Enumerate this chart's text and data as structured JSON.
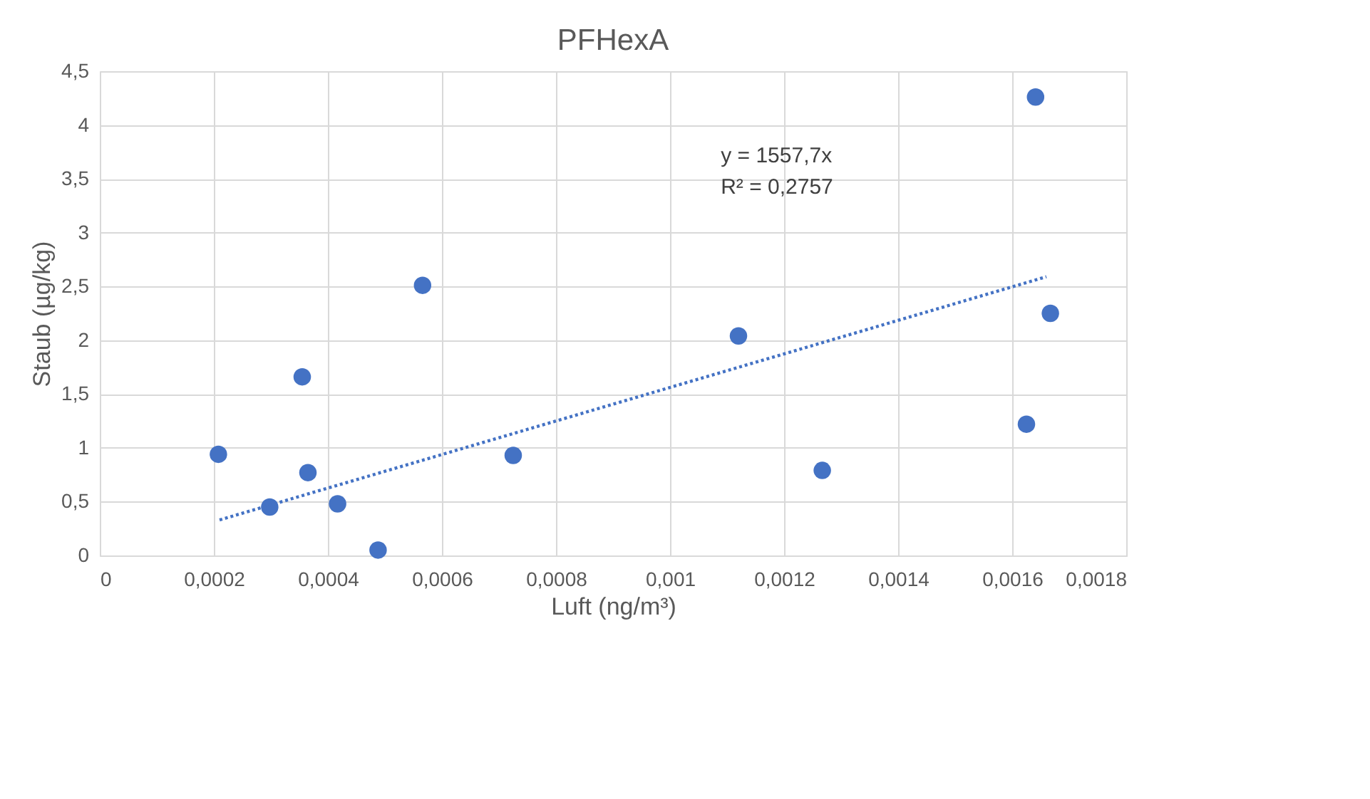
{
  "chart_data": {
    "type": "scatter",
    "title": "PFHexA",
    "xlabel": "Luft (ng/m³)",
    "ylabel": "Staub (µg/kg)",
    "xlim": [
      0,
      0.0018
    ],
    "xticks": [
      0,
      {
        "value": 0.0002,
        "label": "0,0002"
      },
      {
        "value": 0.0004,
        "label": "0,0004"
      },
      {
        "value": 0.0006,
        "label": "0,0006"
      },
      {
        "value": 0.0008,
        "label": "0,0008"
      },
      {
        "value": 0.001,
        "label": "0,001"
      },
      {
        "value": 0.0012,
        "label": "0,0012"
      },
      {
        "value": 0.0014,
        "label": "0,0014"
      },
      {
        "value": 0.0016,
        "label": "0,0016"
      },
      {
        "value": 0.0018,
        "label": "0,0018"
      }
    ],
    "ylim": [
      0,
      4.5
    ],
    "yticks": [
      0,
      {
        "value": 0.5,
        "label": "0,5"
      },
      1,
      {
        "value": 1.5,
        "label": "1,5"
      },
      2,
      {
        "value": 2.5,
        "label": "2,5"
      },
      3,
      {
        "value": 3.5,
        "label": "3,5"
      },
      4,
      {
        "value": 4.5,
        "label": "4,5"
      }
    ],
    "grid": true,
    "series": [
      {
        "marker": "circle",
        "color": "#4472c4",
        "x": [
          0.000208,
          0.000298,
          0.000355,
          0.000365,
          0.000417,
          0.000488,
          0.000566,
          0.000725,
          0.00112,
          0.001267,
          0.001625,
          0.001641,
          0.001667
        ],
        "values": [
          0.94,
          0.45,
          1.66,
          0.77,
          0.48,
          0.05,
          2.51,
          0.93,
          2.04,
          0.79,
          1.22,
          4.26,
          2.25
        ]
      },
      {
        "type": "line",
        "line_style": "dotted",
        "color": "#4472c4",
        "x": [
          0.00021,
          0.00166
        ],
        "values": [
          0.33,
          2.59
        ]
      }
    ],
    "annotations": [
      "y = 1557,7x",
      "R² = 0,2757"
    ]
  }
}
